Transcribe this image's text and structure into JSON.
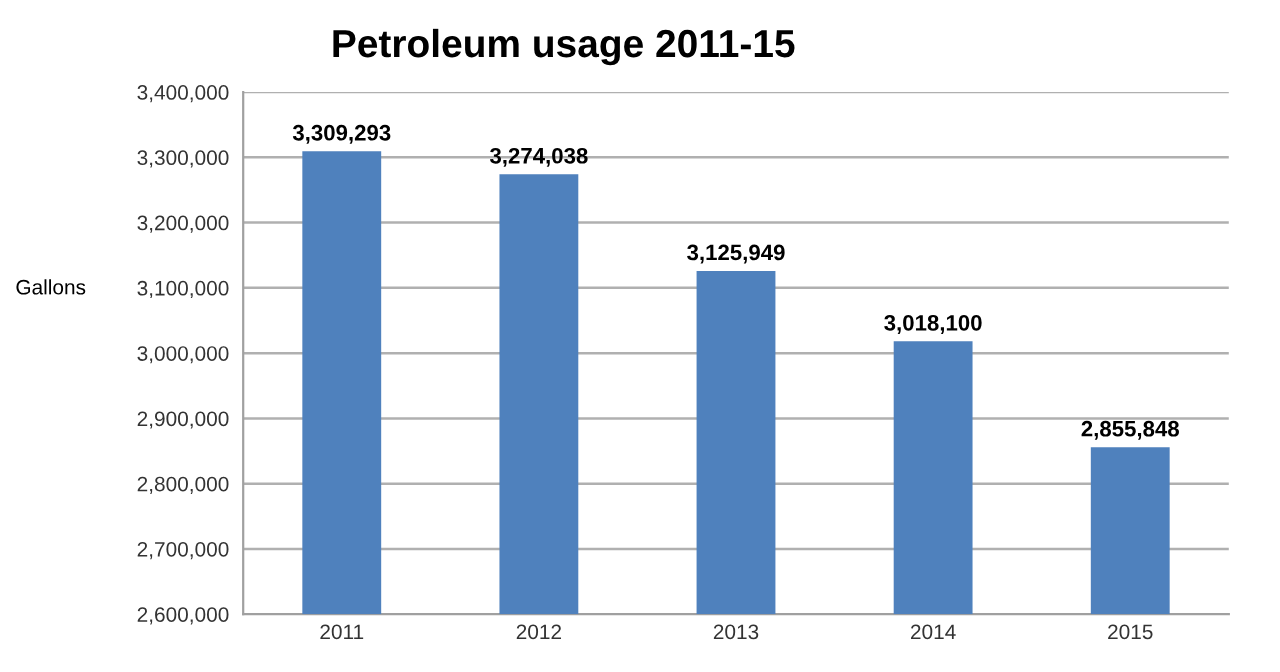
{
  "chart_data": {
    "type": "bar",
    "title": "Petroleum usage 2011-15",
    "ylabel": "Gallons",
    "categories": [
      "2011",
      "2012",
      "2013",
      "2014",
      "2015"
    ],
    "values": [
      3309293,
      3274038,
      3125949,
      3018100,
      2855848
    ],
    "value_labels": [
      "3,309,293",
      "3,274,038",
      "3,125,949",
      "3,018,100",
      "2,855,848"
    ],
    "color": "#4f81bd",
    "ylim": [
      2600000,
      3400000
    ],
    "yticks": [
      {
        "value": 2600000,
        "label": "2,600,000"
      },
      {
        "value": 2700000,
        "label": "2,700,000"
      },
      {
        "value": 2800000,
        "label": "2,800,000"
      },
      {
        "value": 2900000,
        "label": "2,900,000"
      },
      {
        "value": 3000000,
        "label": "3,000,000"
      },
      {
        "value": 3100000,
        "label": "3,100,000"
      },
      {
        "value": 3200000,
        "label": "3,200,000"
      },
      {
        "value": 3300000,
        "label": "3,300,000"
      },
      {
        "value": 3400000,
        "label": "3,400,000"
      }
    ],
    "grid": "y",
    "legend": false
  }
}
